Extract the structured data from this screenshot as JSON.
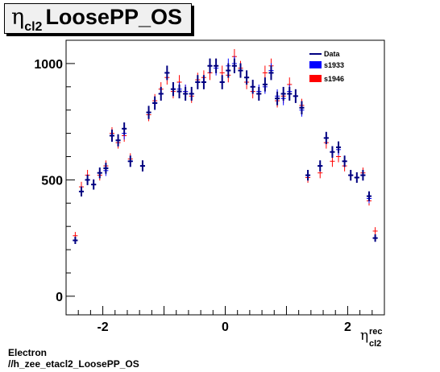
{
  "title": {
    "symbol": "η",
    "subscript": "cl2",
    "text": "LoosePP_OS"
  },
  "footer": {
    "line1": "Electron",
    "line2": "//h_zee_etacl2_LoosePP_OS"
  },
  "chart_data": {
    "type": "scatter",
    "xlabel": {
      "symbol": "η",
      "superscript": "rec",
      "subscript": "cl2"
    },
    "ylabel": "",
    "xlim": [
      -2.6,
      2.6
    ],
    "ylim": [
      -80,
      1100
    ],
    "x_ticks": [
      -2,
      0,
      2
    ],
    "x_tick_labels": [
      "-2",
      "0",
      "2"
    ],
    "y_ticks": [
      0,
      500,
      1000
    ],
    "y_tick_labels": [
      "0",
      "500",
      "1000"
    ],
    "legend": {
      "placement": "top-right",
      "entries": [
        {
          "label": "Data",
          "style": "line",
          "color": "#000080"
        },
        {
          "label": "s1933",
          "style": "box",
          "color": "#0000ff"
        },
        {
          "label": "s1946",
          "style": "box",
          "color": "#ff0000"
        }
      ]
    },
    "bin_width": 0.1,
    "x": [
      -2.45,
      -2.35,
      -2.25,
      -2.15,
      -2.05,
      -1.95,
      -1.85,
      -1.75,
      -1.65,
      -1.55,
      -1.35,
      -1.25,
      -1.15,
      -1.05,
      -0.95,
      -0.85,
      -0.75,
      -0.65,
      -0.55,
      -0.45,
      -0.35,
      -0.25,
      -0.15,
      -0.05,
      0.05,
      0.15,
      0.25,
      0.35,
      0.45,
      0.55,
      0.65,
      0.75,
      0.85,
      0.95,
      1.05,
      1.15,
      1.25,
      1.35,
      1.55,
      1.65,
      1.75,
      1.85,
      1.95,
      2.05,
      2.15,
      2.25,
      2.35,
      2.45
    ],
    "series": [
      {
        "name": "s1946",
        "color": "#ff0000",
        "values": [
          260,
          470,
          520,
          480,
          520,
          560,
          700,
          660,
          690,
          590,
          560,
          780,
          840,
          890,
          940,
          880,
          920,
          880,
          860,
          930,
          940,
          960,
          990,
          960,
          950,
          1030,
          980,
          920,
          880,
          870,
          960,
          990,
          840,
          860,
          910,
          860,
          820,
          510,
          530,
          660,
          580,
          600,
          560,
          520,
          510,
          530,
          410,
          280
        ]
      },
      {
        "name": "s1933",
        "color": "#0000ff",
        "values": [
          240,
          450,
          500,
          480,
          530,
          540,
          690,
          670,
          700,
          580,
          560,
          790,
          830,
          870,
          960,
          890,
          890,
          880,
          870,
          920,
          920,
          990,
          980,
          920,
          990,
          1000,
          970,
          940,
          900,
          880,
          900,
          970,
          860,
          850,
          880,
          860,
          800,
          520,
          560,
          680,
          620,
          630,
          580,
          520,
          510,
          520,
          420,
          250
        ]
      },
      {
        "name": "Data",
        "color": "#000080",
        "values": [
          240,
          450,
          500,
          480,
          530,
          550,
          690,
          670,
          720,
          580,
          560,
          790,
          830,
          870,
          960,
          890,
          880,
          870,
          870,
          920,
          920,
          990,
          990,
          920,
          970,
          990,
          970,
          940,
          900,
          870,
          910,
          960,
          850,
          870,
          870,
          860,
          810,
          520,
          560,
          680,
          620,
          640,
          580,
          520,
          510,
          520,
          430,
          250
        ]
      }
    ]
  }
}
